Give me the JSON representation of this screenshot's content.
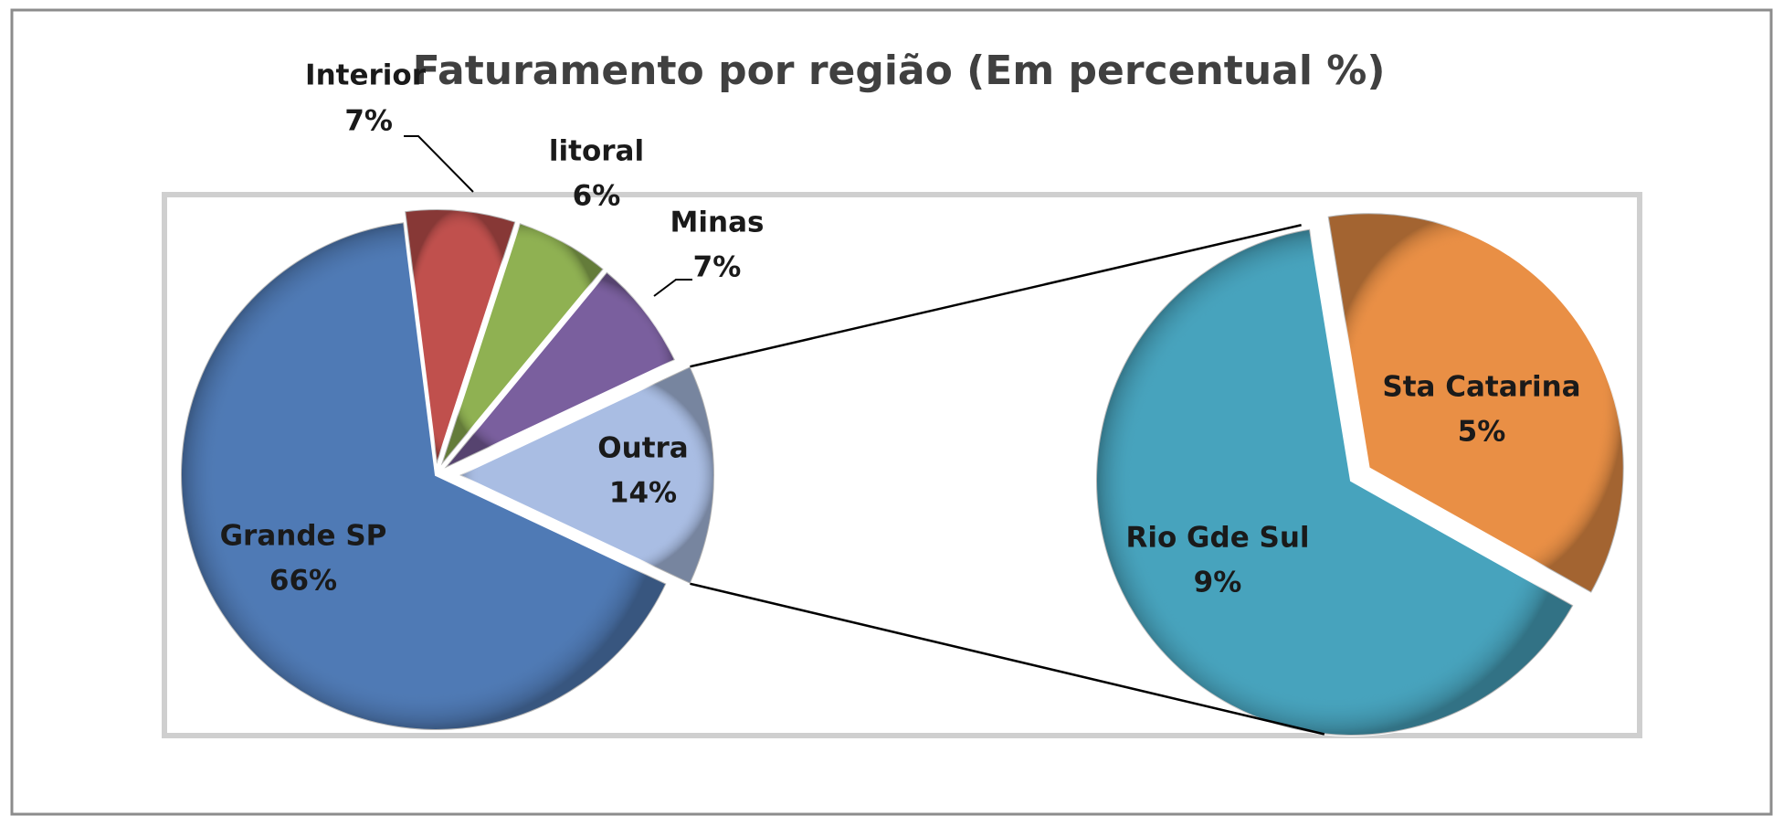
{
  "chart_data": {
    "type": "pie",
    "title": "Faturamento por região (Em percentual %)",
    "categories": [
      "Grande SP",
      "Interior",
      "litoral",
      "Minas",
      "Outra"
    ],
    "values": [
      66,
      7,
      6,
      7,
      14
    ],
    "value_labels": [
      "66%",
      "7%",
      "6%",
      "7%",
      "14%"
    ],
    "colors": [
      "#4f7ab5",
      "#c0504d",
      "#8fb152",
      "#7a5f9e",
      "#a9bde3"
    ],
    "secondary": {
      "categories": [
        "Rio Gde Sul",
        "Sta Catarina"
      ],
      "values": [
        9,
        5
      ],
      "value_labels": [
        "9%",
        "5%"
      ],
      "colors": [
        "#47a3bd",
        "#e98f45"
      ]
    }
  }
}
